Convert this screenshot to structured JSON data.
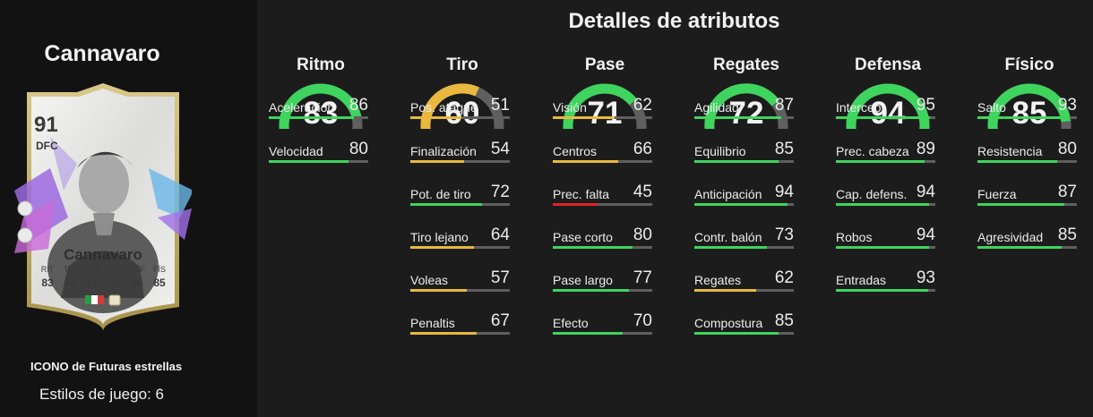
{
  "title": "Detalles de atributos",
  "player": {
    "name": "Cannavaro",
    "card_name": "Cannavaro",
    "rating": "91",
    "position": "DFC",
    "card_stats": [
      {
        "label": "RIT",
        "value": "83"
      },
      {
        "label": "TIR",
        "value": "60"
      },
      {
        "label": "PAS",
        "value": "71"
      },
      {
        "label": "REG",
        "value": "72"
      },
      {
        "label": "DEF",
        "value": "94"
      },
      {
        "label": "FÍS",
        "value": "85"
      }
    ],
    "promo": "ICONO de Futuras estrellas",
    "playstyles": "Estilos de juego: 6"
  },
  "colors": {
    "green": "#3fd45e",
    "yellow": "#e9b93f",
    "red": "#e0222b",
    "track": "#5f5f5f"
  },
  "categories": [
    {
      "name": "Ritmo",
      "value": 83,
      "attributes": [
        {
          "name": "Aceleración",
          "value": 86
        },
        {
          "name": "Velocidad",
          "value": 80
        }
      ]
    },
    {
      "name": "Tiro",
      "value": 60,
      "attributes": [
        {
          "name": "Pos. ataque",
          "value": 51
        },
        {
          "name": "Finalización",
          "value": 54
        },
        {
          "name": "Pot. de tiro",
          "value": 72
        },
        {
          "name": "Tiro lejano",
          "value": 64
        },
        {
          "name": "Voleas",
          "value": 57
        },
        {
          "name": "Penaltis",
          "value": 67
        }
      ]
    },
    {
      "name": "Pase",
      "value": 71,
      "attributes": [
        {
          "name": "Visión",
          "value": 62
        },
        {
          "name": "Centros",
          "value": 66
        },
        {
          "name": "Prec. falta",
          "value": 45
        },
        {
          "name": "Pase corto",
          "value": 80
        },
        {
          "name": "Pase largo",
          "value": 77
        },
        {
          "name": "Efecto",
          "value": 70
        }
      ]
    },
    {
      "name": "Regates",
      "value": 72,
      "attributes": [
        {
          "name": "Agilidad",
          "value": 87
        },
        {
          "name": "Equilibrio",
          "value": 85
        },
        {
          "name": "Anticipación",
          "value": 94
        },
        {
          "name": "Contr. balón",
          "value": 73
        },
        {
          "name": "Regates",
          "value": 62
        },
        {
          "name": "Compostura",
          "value": 85
        }
      ]
    },
    {
      "name": "Defensa",
      "value": 94,
      "attributes": [
        {
          "name": "Intercep.",
          "value": 95
        },
        {
          "name": "Prec. cabeza",
          "value": 89
        },
        {
          "name": "Cap. defens.",
          "value": 94
        },
        {
          "name": "Robos",
          "value": 94
        },
        {
          "name": "Entradas",
          "value": 93
        }
      ]
    },
    {
      "name": "Físico",
      "value": 85,
      "attributes": [
        {
          "name": "Salto",
          "value": 93
        },
        {
          "name": "Resistencia",
          "value": 80
        },
        {
          "name": "Fuerza",
          "value": 87
        },
        {
          "name": "Agresividad",
          "value": 85
        }
      ]
    }
  ]
}
